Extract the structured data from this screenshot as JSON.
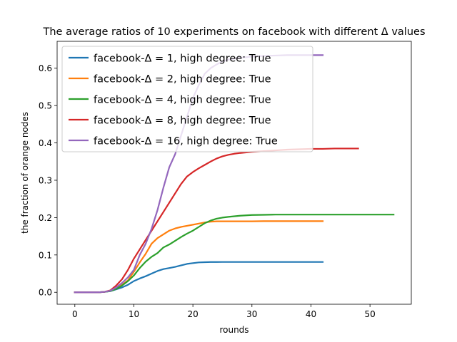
{
  "chart_data": {
    "type": "line",
    "title": "The average ratios of 10 experiments on facebook with different Δ values",
    "xlabel": "rounds",
    "ylabel": "the fraction of orange nodes",
    "xlim": [
      -3,
      57
    ],
    "ylim": [
      -0.032,
      0.672
    ],
    "xticks": [
      0,
      10,
      20,
      30,
      40,
      50
    ],
    "yticks": [
      0.0,
      0.1,
      0.2,
      0.3,
      0.4,
      0.5,
      0.6
    ],
    "xtick_labels": [
      "0",
      "10",
      "20",
      "30",
      "40",
      "50"
    ],
    "ytick_labels": [
      "0.0",
      "0.1",
      "0.2",
      "0.3",
      "0.4",
      "0.5",
      "0.6"
    ],
    "grid": false,
    "legend_position": "top-left",
    "series": [
      {
        "name": "facebook-Δ =  1, high degree: True",
        "color": "#1f77b4",
        "x": [
          0,
          2,
          4,
          5,
          6,
          7,
          8,
          9,
          10,
          11,
          12,
          13,
          14,
          15,
          16,
          17,
          18,
          19,
          20,
          21,
          22,
          23,
          24,
          25,
          26,
          28,
          30,
          32,
          34,
          36,
          38,
          40,
          42
        ],
        "y": [
          0,
          0,
          0,
          0.001,
          0.003,
          0.008,
          0.013,
          0.02,
          0.03,
          0.037,
          0.043,
          0.05,
          0.057,
          0.062,
          0.065,
          0.068,
          0.072,
          0.076,
          0.078,
          0.08,
          0.0805,
          0.081,
          0.081,
          0.0812,
          0.0812,
          0.0812,
          0.0812,
          0.0812,
          0.0812,
          0.0812,
          0.0812,
          0.0812,
          0.0812
        ]
      },
      {
        "name": "facebook-Δ =  2, high degree: True",
        "color": "#ff7f0e",
        "x": [
          0,
          2,
          4,
          5,
          6,
          7,
          8,
          9,
          10,
          11,
          12,
          13,
          14,
          15,
          16,
          17,
          18,
          19,
          20,
          21,
          22,
          23,
          24,
          25,
          26,
          28,
          30,
          32,
          34,
          36,
          38,
          40,
          42
        ],
        "y": [
          0,
          0,
          0,
          0.001,
          0.004,
          0.011,
          0.02,
          0.032,
          0.055,
          0.08,
          0.103,
          0.13,
          0.145,
          0.155,
          0.165,
          0.171,
          0.175,
          0.178,
          0.181,
          0.184,
          0.187,
          0.189,
          0.19,
          0.19,
          0.19,
          0.19,
          0.19,
          0.1905,
          0.1905,
          0.1905,
          0.1905,
          0.1905,
          0.1905
        ]
      },
      {
        "name": "facebook-Δ =  4, high degree: True",
        "color": "#2ca02c",
        "x": [
          0,
          2,
          4,
          5,
          6,
          7,
          8,
          9,
          10,
          11,
          12,
          13,
          14,
          15,
          16,
          17,
          18,
          19,
          20,
          21,
          22,
          23,
          24,
          25,
          26,
          28,
          30,
          32,
          34,
          36,
          38,
          40,
          42,
          44,
          46,
          48,
          50,
          52,
          54
        ],
        "y": [
          0,
          0,
          0,
          0.001,
          0.003,
          0.009,
          0.018,
          0.03,
          0.045,
          0.065,
          0.082,
          0.095,
          0.105,
          0.12,
          0.128,
          0.138,
          0.148,
          0.157,
          0.165,
          0.175,
          0.185,
          0.192,
          0.197,
          0.2,
          0.202,
          0.205,
          0.207,
          0.2075,
          0.208,
          0.208,
          0.208,
          0.208,
          0.208,
          0.208,
          0.208,
          0.208,
          0.208,
          0.208,
          0.208
        ]
      },
      {
        "name": "facebook-Δ =  8, high degree: True",
        "color": "#d62728",
        "x": [
          0,
          2,
          4,
          5,
          6,
          7,
          8,
          9,
          10,
          11,
          12,
          13,
          14,
          15,
          16,
          17,
          18,
          19,
          20,
          21,
          22,
          23,
          24,
          25,
          26,
          27,
          28,
          30,
          32,
          34,
          36,
          38,
          40,
          42,
          44,
          46,
          48
        ],
        "y": [
          0,
          0,
          0,
          0.001,
          0.005,
          0.018,
          0.035,
          0.06,
          0.09,
          0.115,
          0.14,
          0.165,
          0.19,
          0.215,
          0.24,
          0.265,
          0.29,
          0.31,
          0.322,
          0.332,
          0.341,
          0.35,
          0.358,
          0.364,
          0.368,
          0.371,
          0.373,
          0.376,
          0.378,
          0.38,
          0.382,
          0.383,
          0.384,
          0.384,
          0.385,
          0.385,
          0.385
        ]
      },
      {
        "name": "facebook-Δ = 16, high degree: True",
        "color": "#9467bd",
        "x": [
          0,
          2,
          4,
          5,
          6,
          7,
          8,
          9,
          10,
          11,
          12,
          13,
          14,
          15,
          16,
          17,
          18,
          19,
          20,
          21,
          22,
          23,
          24,
          25,
          26,
          28,
          30,
          32,
          34,
          36,
          38,
          40,
          42
        ],
        "y": [
          0,
          0,
          0,
          0.001,
          0.004,
          0.013,
          0.025,
          0.04,
          0.06,
          0.1,
          0.13,
          0.17,
          0.22,
          0.28,
          0.335,
          0.37,
          0.42,
          0.47,
          0.52,
          0.555,
          0.585,
          0.6,
          0.61,
          0.618,
          0.623,
          0.628,
          0.631,
          0.633,
          0.634,
          0.635,
          0.635,
          0.635,
          0.635
        ]
      }
    ]
  }
}
